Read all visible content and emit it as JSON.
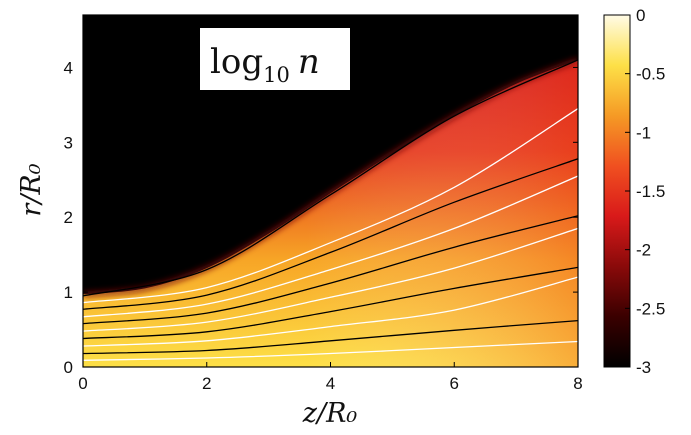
{
  "chart_data": {
    "type": "heatmap",
    "title": "log₁₀ n",
    "title_parts": {
      "main": "log",
      "sub": "10",
      "var": "n"
    },
    "xlabel": "z/R₀",
    "ylabel": "r/R₀",
    "xlim": [
      0,
      8
    ],
    "ylim": [
      0,
      4.7
    ],
    "x_ticks": [
      0,
      2,
      4,
      6,
      8
    ],
    "y_ticks": [
      0,
      1,
      2,
      3,
      4
    ],
    "x_tick_labels": [
      "0",
      "2",
      "4",
      "6",
      "8"
    ],
    "y_tick_labels": [
      "0",
      "1",
      "2",
      "3",
      "4"
    ],
    "colorbar": {
      "range": [
        -3,
        0
      ],
      "ticks": [
        0,
        -0.5,
        -1,
        -1.5,
        -2,
        -2.5,
        -3
      ],
      "tick_labels": [
        "0",
        "-0.5",
        "-1",
        "-1.5",
        "-2",
        "-2.5",
        "-3"
      ],
      "colormap": [
        "#000000",
        "#3a0000",
        "#8a0a0a",
        "#d91a1a",
        "#f05020",
        "#f59a25",
        "#fde047",
        "#fffbe6"
      ]
    },
    "boundary_radius": {
      "z": [
        0,
        1,
        2,
        3,
        4,
        5,
        6,
        7,
        8
      ],
      "r": [
        0.97,
        1.05,
        1.32,
        1.78,
        2.32,
        2.85,
        3.35,
        3.78,
        4.1
      ]
    },
    "flux_lines_black": [
      {
        "z": [
          0,
          2,
          4,
          6,
          8
        ],
        "r": [
          0.95,
          1.3,
          2.3,
          3.35,
          4.1
        ]
      },
      {
        "z": [
          0,
          2,
          4,
          6,
          8
        ],
        "r": [
          0.77,
          0.96,
          1.53,
          2.2,
          2.78
        ]
      },
      {
        "z": [
          0,
          2,
          4,
          6,
          8
        ],
        "r": [
          0.58,
          0.72,
          1.12,
          1.6,
          2.02
        ]
      },
      {
        "z": [
          0,
          2,
          4,
          6,
          8
        ],
        "r": [
          0.38,
          0.47,
          0.74,
          1.05,
          1.33
        ]
      },
      {
        "z": [
          0,
          2,
          4,
          6,
          8
        ],
        "r": [
          0.18,
          0.22,
          0.35,
          0.49,
          0.62
        ]
      }
    ],
    "flux_lines_white": [
      {
        "z": [
          0,
          2,
          4,
          6,
          8
        ],
        "r": [
          0.86,
          1.06,
          1.66,
          2.4,
          3.45
        ]
      },
      {
        "z": [
          0,
          2,
          4,
          6,
          8
        ],
        "r": [
          0.67,
          0.84,
          1.3,
          1.85,
          2.55
        ]
      },
      {
        "z": [
          0,
          2,
          4,
          6,
          8
        ],
        "r": [
          0.48,
          0.6,
          0.93,
          1.32,
          1.85
        ]
      },
      {
        "z": [
          0,
          2,
          4,
          6,
          8
        ],
        "r": [
          0.28,
          0.35,
          0.54,
          0.76,
          1.2
        ]
      },
      {
        "z": [
          0,
          2,
          4,
          6,
          8
        ],
        "r": [
          0.09,
          0.12,
          0.18,
          0.26,
          0.34
        ]
      }
    ]
  }
}
